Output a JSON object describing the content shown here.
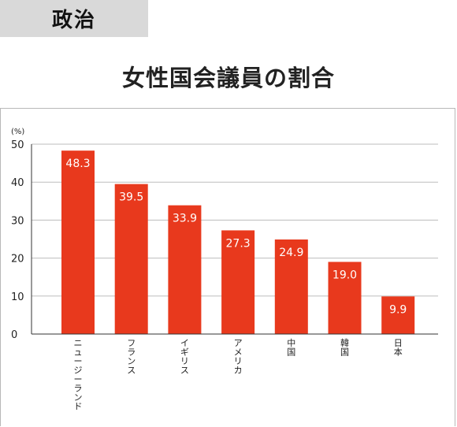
{
  "header": {
    "tag": "政治"
  },
  "chart_data": {
    "type": "bar",
    "title": "女性国会議員の割合",
    "ylabel": "(%)",
    "ylim": [
      0,
      50
    ],
    "yticks": [
      0,
      10,
      20,
      30,
      40,
      50
    ],
    "grid": true,
    "categories": [
      "ニュージーランド",
      "フランス",
      "イギリス",
      "アメリカ",
      "中国",
      "韓国",
      "日本"
    ],
    "values": [
      48.3,
      39.5,
      33.9,
      27.3,
      24.9,
      19.0,
      9.9
    ],
    "value_labels": [
      "48.3",
      "39.5",
      "33.9",
      "27.3",
      "24.9",
      "19.0",
      "9.9"
    ],
    "bar_color": "#e8391d",
    "grid_color": "#bdbdbd"
  }
}
